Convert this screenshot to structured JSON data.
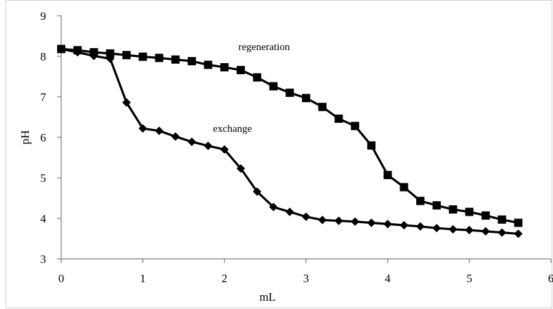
{
  "chart_data": {
    "type": "line",
    "title": "",
    "xlabel": "mL",
    "ylabel": "pH",
    "xlim": [
      0,
      6
    ],
    "ylim": [
      3,
      9
    ],
    "xticks": [
      "0",
      "1",
      "2",
      "3",
      "4",
      "5",
      "6"
    ],
    "yticks": [
      "3",
      "4",
      "5",
      "6",
      "7",
      "8",
      "9"
    ],
    "grid": false,
    "legend": "none",
    "series": [
      {
        "name": "regeneration",
        "marker": "square",
        "color": "#000000",
        "x": [
          0,
          0.2,
          0.4,
          0.6,
          0.8,
          1.0,
          1.2,
          1.4,
          1.6,
          1.8,
          2.0,
          2.2,
          2.4,
          2.6,
          2.8,
          3.0,
          3.2,
          3.4,
          3.6,
          3.8,
          4.0,
          4.2,
          4.4,
          4.6,
          4.8,
          5.0,
          5.2,
          5.4,
          5.6
        ],
        "y": [
          8.18,
          8.15,
          8.1,
          8.07,
          8.03,
          7.99,
          7.96,
          7.92,
          7.88,
          7.79,
          7.73,
          7.66,
          7.48,
          7.26,
          7.1,
          6.97,
          6.75,
          6.46,
          6.28,
          5.8,
          5.07,
          4.77,
          4.43,
          4.32,
          4.22,
          4.16,
          4.07,
          3.97,
          3.89
        ]
      },
      {
        "name": "exchange",
        "marker": "diamond",
        "color": "#000000",
        "x": [
          0,
          0.2,
          0.4,
          0.6,
          0.8,
          1.0,
          1.2,
          1.4,
          1.6,
          1.8,
          2.0,
          2.2,
          2.4,
          2.6,
          2.8,
          3.0,
          3.2,
          3.4,
          3.6,
          3.8,
          4.0,
          4.2,
          4.4,
          4.6,
          4.8,
          5.0,
          5.2,
          5.4,
          5.6
        ],
        "y": [
          8.18,
          8.1,
          8.01,
          7.94,
          6.86,
          6.22,
          6.16,
          6.02,
          5.89,
          5.79,
          5.7,
          5.23,
          4.66,
          4.28,
          4.16,
          4.04,
          3.96,
          3.94,
          3.92,
          3.89,
          3.86,
          3.83,
          3.8,
          3.76,
          3.73,
          3.71,
          3.68,
          3.65,
          3.62
        ]
      }
    ]
  }
}
